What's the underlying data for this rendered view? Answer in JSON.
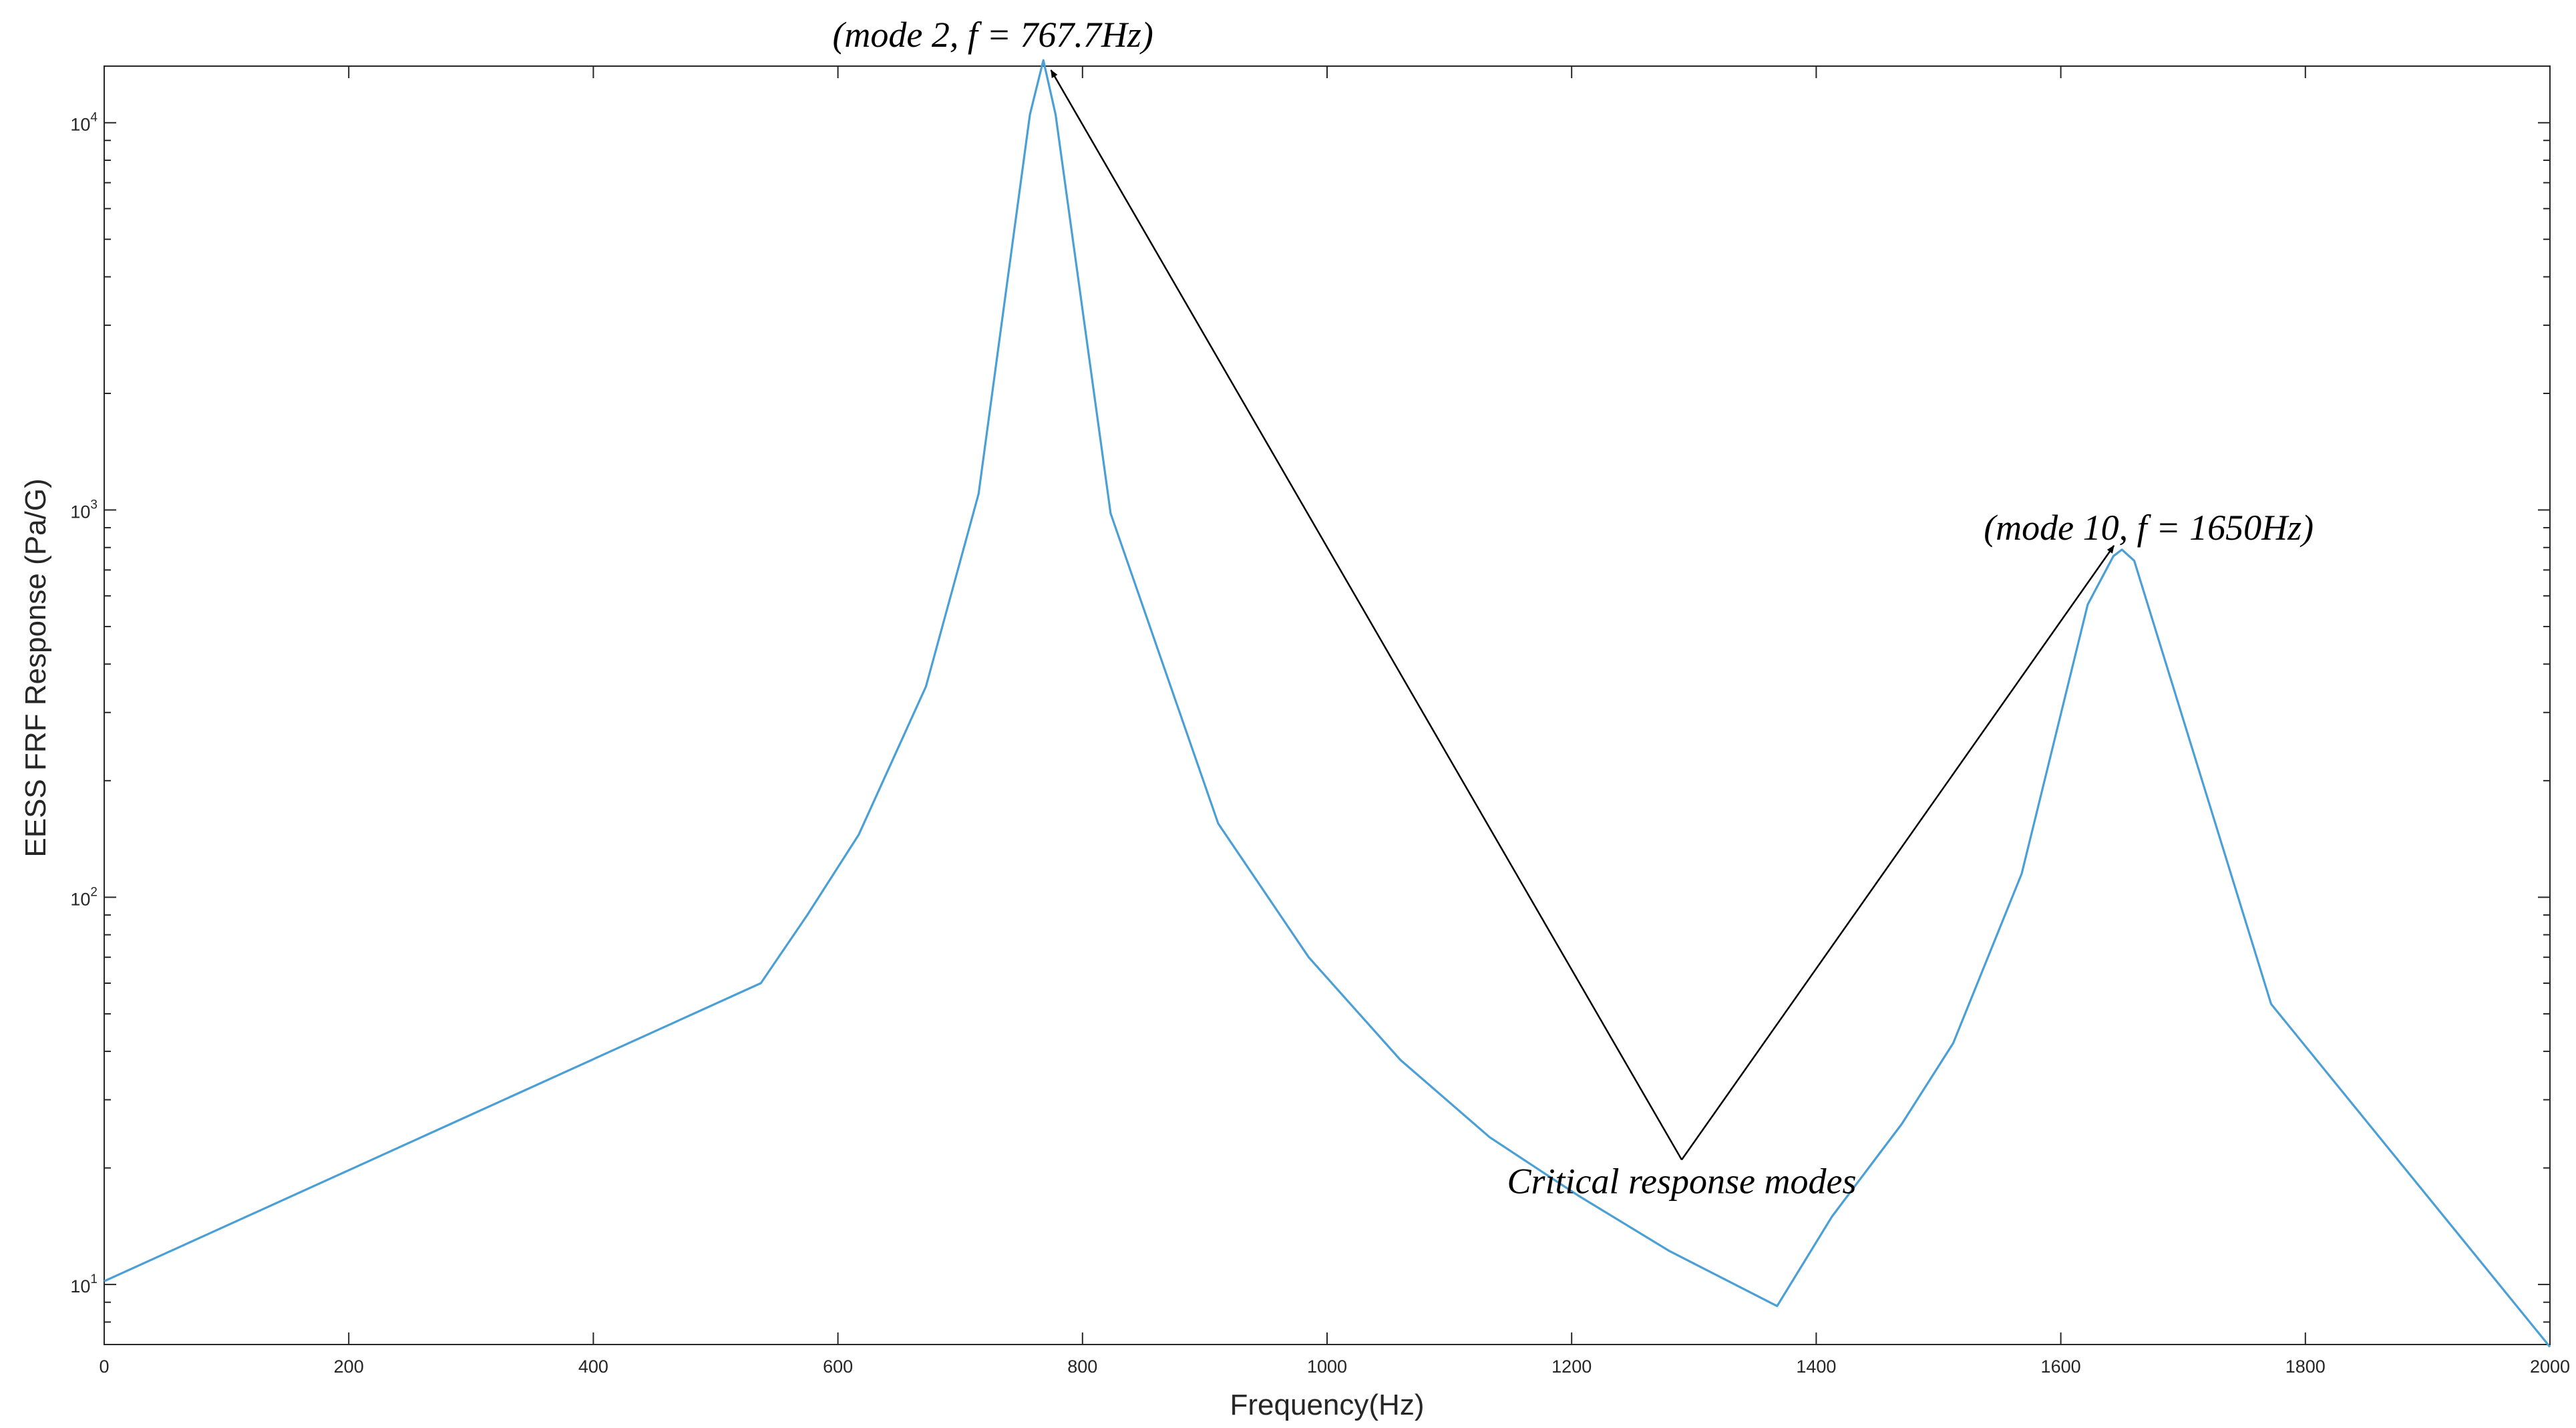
{
  "chart_data": {
    "type": "line",
    "title": "",
    "xlabel": "Frequency(Hz)",
    "ylabel": "EESS FRF Response (Pa/G)",
    "xlim": [
      0,
      2000
    ],
    "ylim": [
      7,
      14000
    ],
    "yscale": "log",
    "grid": false,
    "x_ticks": [
      0,
      200,
      400,
      600,
      800,
      1000,
      1200,
      1400,
      1600,
      1800,
      2000
    ],
    "x_tick_labels": [
      "0",
      "200",
      "400",
      "600",
      "800",
      "1000",
      "1200",
      "1400",
      "1600",
      "1800",
      "2000"
    ],
    "y_ticks": [
      10,
      100,
      1000,
      10000
    ],
    "y_tick_labels": [
      {
        "base": "10",
        "exp": "1"
      },
      {
        "base": "10",
        "exp": "2"
      },
      {
        "base": "10",
        "exp": "3"
      },
      {
        "base": "10",
        "exp": "4"
      }
    ],
    "series": [
      {
        "color": "#4a9fd6",
        "x": [
          0,
          537,
          575,
          617,
          672,
          715,
          757,
          768,
          778,
          823,
          911,
          985,
          1060,
          1133,
          1205,
          1280,
          1368,
          1413,
          1470,
          1512,
          1568,
          1622,
          1643,
          1650,
          1660,
          1772,
          2000
        ],
        "y": [
          10.2,
          60,
          90,
          145,
          350,
          1100,
          10500,
          14500,
          10500,
          980,
          155,
          70,
          38,
          24,
          17,
          12.2,
          8.8,
          15,
          26,
          42,
          115,
          570,
          760,
          790,
          740,
          53,
          6.9
        ]
      }
    ],
    "annotations": [
      {
        "text": "(mode 2, f = 767.7Hz)",
        "target_x": 767.7,
        "target_y": 14000
      },
      {
        "text": "(mode 10, f = 1650Hz)",
        "target_x": 1650,
        "target_y": 790
      },
      {
        "text": "Critical response modes",
        "from_x": 1290,
        "from_y": 21
      }
    ]
  }
}
